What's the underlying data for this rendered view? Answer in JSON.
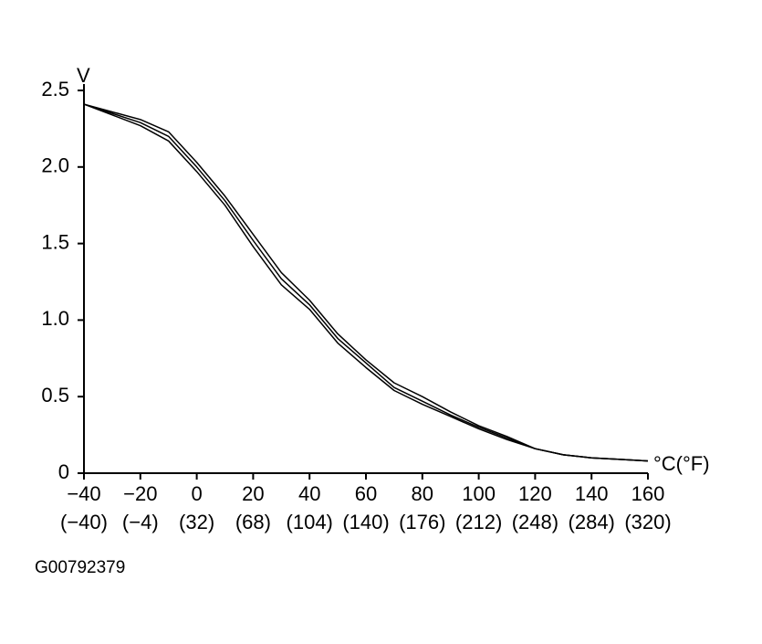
{
  "chart_data": {
    "type": "line",
    "x_unit": "°C(°F)",
    "y_unit": "V",
    "x": [
      -40,
      -30,
      -20,
      -10,
      0,
      10,
      20,
      30,
      40,
      50,
      60,
      70,
      80,
      90,
      100,
      110,
      120,
      130,
      140,
      150,
      160
    ],
    "series": [
      {
        "color": "#000000",
        "values": [
          2.41,
          2.36,
          2.31,
          2.23,
          2.03,
          1.81,
          1.56,
          1.31,
          1.13,
          0.91,
          0.74,
          0.59,
          0.5,
          0.4,
          0.31,
          0.24,
          0.16,
          0.12,
          0.1,
          0.09,
          0.08
        ]
      },
      {
        "color": "#000000",
        "values": [
          2.41,
          2.35,
          2.29,
          2.2,
          2.0,
          1.78,
          1.52,
          1.27,
          1.1,
          0.88,
          0.72,
          0.56,
          0.47,
          0.38,
          0.3,
          0.23,
          0.16,
          0.12,
          0.1,
          0.09,
          0.08
        ]
      },
      {
        "color": "#000000",
        "values": [
          2.41,
          2.34,
          2.27,
          2.17,
          1.97,
          1.75,
          1.48,
          1.23,
          1.07,
          0.85,
          0.69,
          0.54,
          0.45,
          0.37,
          0.29,
          0.22,
          0.16,
          0.12,
          0.1,
          0.09,
          0.08
        ]
      }
    ],
    "xlim": [
      -40,
      160
    ],
    "xticks": [
      {
        "value": -40,
        "label": "−40"
      },
      {
        "value": -20,
        "label": "−20"
      },
      0,
      20,
      40,
      60,
      80,
      100,
      120,
      140,
      160
    ],
    "x_secondary_labels": [
      "(−40)",
      "(−4)",
      "(32)",
      "(68)",
      "(104)",
      "(140)",
      "(176)",
      "(212)",
      "(248)",
      "(284)",
      "(320)"
    ],
    "ylim": [
      0,
      2.5
    ],
    "yticks": [
      0,
      0.5,
      {
        "value": 1,
        "label": "1.0"
      },
      1.5,
      {
        "value": 2,
        "label": "2.0"
      },
      2.5
    ],
    "grid": false
  },
  "figure_id": "G00792379"
}
